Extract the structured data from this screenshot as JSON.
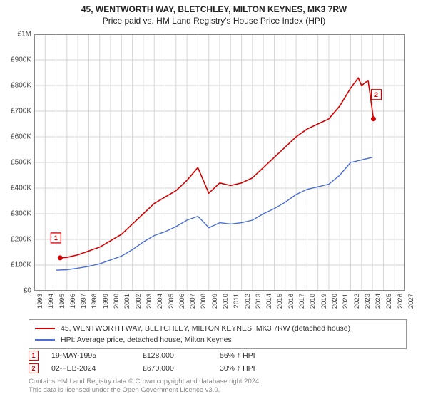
{
  "title_line1": "45, WENTWORTH WAY, BLETCHLEY, MILTON KEYNES, MK3 7RW",
  "title_line2": "Price paid vs. HM Land Registry's House Price Index (HPI)",
  "chart": {
    "type": "line",
    "background_color": "#ffffff",
    "grid_color": "#d6d6d6",
    "axis_color": "#888888",
    "x_axis": {
      "min_year": 1993,
      "max_year": 2027,
      "tick_years": [
        1993,
        1994,
        1995,
        1996,
        1997,
        1998,
        1999,
        2000,
        2001,
        2002,
        2003,
        2004,
        2005,
        2006,
        2007,
        2008,
        2009,
        2010,
        2011,
        2012,
        2013,
        2014,
        2015,
        2016,
        2017,
        2018,
        2019,
        2020,
        2021,
        2022,
        2023,
        2024,
        2025,
        2026,
        2027
      ],
      "label_fontsize": 9.5,
      "label_rotation": -90
    },
    "y_axis": {
      "min": 0,
      "max": 1000000,
      "tick_step": 100000,
      "tick_labels": [
        "£0",
        "£100K",
        "£200K",
        "£300K",
        "£400K",
        "£500K",
        "£600K",
        "£700K",
        "£800K",
        "£900K",
        "£1M"
      ],
      "label_fontsize": 10
    },
    "series": [
      {
        "id": "price_paid",
        "label": "45, WENTWORTH WAY, BLETCHLEY, MILTON KEYNES, MK3 7RW (detached house)",
        "color": "#d40000",
        "line_width": 1.6,
        "data": [
          [
            1995.38,
            128000
          ],
          [
            1996,
            130000
          ],
          [
            1997,
            140000
          ],
          [
            1998,
            155000
          ],
          [
            1999,
            170000
          ],
          [
            2000,
            195000
          ],
          [
            2001,
            220000
          ],
          [
            2002,
            260000
          ],
          [
            2003,
            300000
          ],
          [
            2004,
            340000
          ],
          [
            2005,
            365000
          ],
          [
            2006,
            390000
          ],
          [
            2007,
            430000
          ],
          [
            2008,
            480000
          ],
          [
            2008.6,
            420000
          ],
          [
            2009,
            380000
          ],
          [
            2010,
            420000
          ],
          [
            2011,
            410000
          ],
          [
            2012,
            420000
          ],
          [
            2013,
            440000
          ],
          [
            2014,
            480000
          ],
          [
            2015,
            520000
          ],
          [
            2016,
            560000
          ],
          [
            2017,
            600000
          ],
          [
            2018,
            630000
          ],
          [
            2019,
            650000
          ],
          [
            2020,
            670000
          ],
          [
            2021,
            720000
          ],
          [
            2022,
            790000
          ],
          [
            2022.7,
            830000
          ],
          [
            2023,
            800000
          ],
          [
            2023.6,
            820000
          ],
          [
            2024.09,
            670000
          ]
        ],
        "markers": [
          {
            "id": "1",
            "x": 1995.38,
            "y": 128000,
            "label": "1"
          },
          {
            "id": "2",
            "x": 2024.09,
            "y": 670000,
            "label": "2"
          }
        ],
        "marker_style": {
          "shape": "circle",
          "fill": "#d40000",
          "border": "#d40000",
          "radius": 3.5
        },
        "marker_badge_style": {
          "border_color": "#d40000",
          "text_color": "#d40000",
          "bg": "#ffffff",
          "size": 14
        }
      },
      {
        "id": "hpi",
        "label": "HPI: Average price, detached house, Milton Keynes",
        "color": "#4a6fd4",
        "line_width": 1.4,
        "data": [
          [
            1995,
            80000
          ],
          [
            1996,
            82000
          ],
          [
            1997,
            88000
          ],
          [
            1998,
            95000
          ],
          [
            1999,
            105000
          ],
          [
            2000,
            120000
          ],
          [
            2001,
            135000
          ],
          [
            2002,
            160000
          ],
          [
            2003,
            190000
          ],
          [
            2004,
            215000
          ],
          [
            2005,
            230000
          ],
          [
            2006,
            250000
          ],
          [
            2007,
            275000
          ],
          [
            2008,
            290000
          ],
          [
            2008.7,
            260000
          ],
          [
            2009,
            245000
          ],
          [
            2010,
            265000
          ],
          [
            2011,
            260000
          ],
          [
            2012,
            265000
          ],
          [
            2013,
            275000
          ],
          [
            2014,
            300000
          ],
          [
            2015,
            320000
          ],
          [
            2016,
            345000
          ],
          [
            2017,
            375000
          ],
          [
            2018,
            395000
          ],
          [
            2019,
            405000
          ],
          [
            2020,
            415000
          ],
          [
            2021,
            450000
          ],
          [
            2022,
            500000
          ],
          [
            2023,
            510000
          ],
          [
            2024,
            520000
          ]
        ]
      }
    ]
  },
  "legend": {
    "border_color": "#999999",
    "items": [
      {
        "series_id": "price_paid"
      },
      {
        "series_id": "hpi"
      }
    ]
  },
  "sale_markers": [
    {
      "badge": "1",
      "date": "19-MAY-1995",
      "price": "£128,000",
      "delta": "56% ↑ HPI"
    },
    {
      "badge": "2",
      "date": "02-FEB-2024",
      "price": "£670,000",
      "delta": "30% ↑ HPI"
    }
  ],
  "footer": {
    "line1": "Contains HM Land Registry data © Crown copyright and database right 2024.",
    "line2": "This data is licensed under the Open Government Licence v3.0."
  }
}
